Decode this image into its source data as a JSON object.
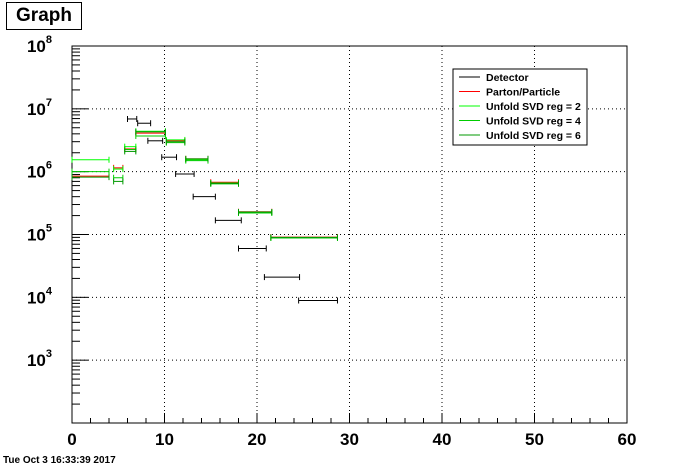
{
  "title": "Graph",
  "timestamp": "Tue Oct  3 16:33:39 2017",
  "chart_data": {
    "type": "scatter",
    "title": "Graph",
    "xlabel": "",
    "ylabel": "",
    "xlim": [
      0,
      60
    ],
    "ylim": [
      100,
      100000000
    ],
    "y_scale": "log",
    "grid": true,
    "legend_position": "top-right",
    "x_ticks": [
      "0",
      "10",
      "20",
      "30",
      "40",
      "50",
      "60"
    ],
    "y_ticks": [
      {
        "base": "10",
        "exp": "3",
        "value": 1000
      },
      {
        "base": "10",
        "exp": "4",
        "value": 10000
      },
      {
        "base": "10",
        "exp": "5",
        "value": 100000
      },
      {
        "base": "10",
        "exp": "6",
        "value": 1000000
      },
      {
        "base": "10",
        "exp": "7",
        "value": 10000000
      },
      {
        "base": "10",
        "exp": "8",
        "value": 100000000
      }
    ],
    "series": [
      {
        "name": "Detector",
        "color": "#000000",
        "points": [
          {
            "x": 6.5,
            "xerr": 0.5,
            "y": 6900000
          },
          {
            "x": 7.8,
            "xerr": 0.7,
            "y": 5900000
          },
          {
            "x": 9.0,
            "xerr": 0.8,
            "y": 3100000
          },
          {
            "x": 10.5,
            "xerr": 0.8,
            "y": 1700000
          },
          {
            "x": 12.2,
            "xerr": 1.0,
            "y": 920000
          },
          {
            "x": 14.3,
            "xerr": 1.2,
            "y": 400000
          },
          {
            "x": 16.9,
            "xerr": 1.4,
            "y": 168000
          },
          {
            "x": 19.5,
            "xerr": 1.5,
            "y": 60000
          },
          {
            "x": 22.7,
            "xerr": 1.9,
            "y": 21000
          },
          {
            "x": 26.6,
            "xerr": 2.1,
            "y": 8900
          }
        ]
      },
      {
        "name": "Parton/Particle",
        "color": "#ff0000",
        "points": [
          {
            "x": 2.0,
            "xerr": 2.0,
            "y": 850000
          },
          {
            "x": 5.0,
            "xerr": 0.5,
            "y": 1150000
          },
          {
            "x": 6.3,
            "xerr": 0.6,
            "y": 2300000
          },
          {
            "x": 8.5,
            "xerr": 1.6,
            "y": 4100000
          },
          {
            "x": 11.2,
            "xerr": 1.0,
            "y": 3100000
          },
          {
            "x": 13.5,
            "xerr": 1.2,
            "y": 1600000
          },
          {
            "x": 16.5,
            "xerr": 1.5,
            "y": 680000
          },
          {
            "x": 19.8,
            "xerr": 1.8,
            "y": 230000
          },
          {
            "x": 25.1,
            "xerr": 3.6,
            "y": 91000
          }
        ]
      },
      {
        "name": "Unfold SVD reg = 2",
        "color": "#00ff00",
        "points": [
          {
            "x": 2.0,
            "xerr": 2.0,
            "y": 1550000
          },
          {
            "x": 5.0,
            "xerr": 0.5,
            "y": 1100000
          },
          {
            "x": 6.3,
            "xerr": 0.6,
            "y": 2500000
          },
          {
            "x": 8.5,
            "xerr": 1.6,
            "y": 4400000
          },
          {
            "x": 11.2,
            "xerr": 1.0,
            "y": 3200000
          },
          {
            "x": 13.5,
            "xerr": 1.2,
            "y": 1550000
          },
          {
            "x": 16.5,
            "xerr": 1.5,
            "y": 660000
          },
          {
            "x": 19.8,
            "xerr": 1.8,
            "y": 225000
          },
          {
            "x": 25.1,
            "xerr": 3.6,
            "y": 89000
          }
        ]
      },
      {
        "name": "Unfold SVD reg = 4",
        "color": "#00cc00",
        "points": [
          {
            "x": 2.0,
            "xerr": 2.0,
            "y": 1000000
          },
          {
            "x": 5.0,
            "xerr": 0.5,
            "y": 800000
          },
          {
            "x": 6.3,
            "xerr": 0.6,
            "y": 2250000
          },
          {
            "x": 8.5,
            "xerr": 1.6,
            "y": 3700000
          },
          {
            "x": 11.2,
            "xerr": 1.0,
            "y": 2900000
          },
          {
            "x": 13.5,
            "xerr": 1.2,
            "y": 1500000
          },
          {
            "x": 16.5,
            "xerr": 1.5,
            "y": 640000
          },
          {
            "x": 19.8,
            "xerr": 1.8,
            "y": 220000
          },
          {
            "x": 25.1,
            "xerr": 3.6,
            "y": 88000
          }
        ]
      },
      {
        "name": "Unfold SVD reg = 6",
        "color": "#009900",
        "points": [
          {
            "x": 2.0,
            "xerr": 2.0,
            "y": 820000
          },
          {
            "x": 5.0,
            "xerr": 0.5,
            "y": 700000
          },
          {
            "x": 6.3,
            "xerr": 0.6,
            "y": 2100000
          },
          {
            "x": 8.5,
            "xerr": 1.6,
            "y": 4300000
          },
          {
            "x": 11.2,
            "xerr": 1.0,
            "y": 3000000
          },
          {
            "x": 13.5,
            "xerr": 1.2,
            "y": 1600000
          },
          {
            "x": 16.5,
            "xerr": 1.5,
            "y": 650000
          },
          {
            "x": 19.8,
            "xerr": 1.8,
            "y": 228000
          },
          {
            "x": 25.1,
            "xerr": 3.6,
            "y": 90000
          }
        ]
      }
    ]
  }
}
